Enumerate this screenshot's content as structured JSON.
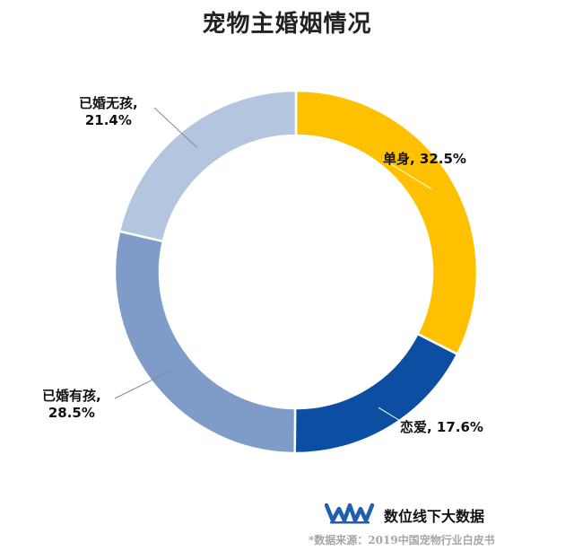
{
  "chart_data": {
    "type": "pie",
    "variant": "donut",
    "title": "宠物主婚姻情况",
    "slices": [
      {
        "label": "单身",
        "value": 32.5,
        "display": "单身, 32.5%",
        "color": "#FFC000"
      },
      {
        "label": "恋爱",
        "value": 17.6,
        "display": "恋爱, 17.6%",
        "color": "#0B4EA2"
      },
      {
        "label": "已婚有孩",
        "value": 28.5,
        "display_lines": [
          "已婚有孩,",
          "28.5%"
        ],
        "color": "#7F9CC8"
      },
      {
        "label": "已婚无孩",
        "value": 21.4,
        "display_lines": [
          "已婚无孩,",
          "21.4%"
        ],
        "color": "#B4C5E0"
      }
    ],
    "start_angle_deg": 0,
    "direction": "clockwise",
    "legend": "none"
  },
  "brand": {
    "name": "数位线下大数据",
    "logo_color": "#1F5FAF",
    "icon": "brand-logo-icon"
  },
  "source_note": "*数据来源：2019中国宠物行业白皮书"
}
